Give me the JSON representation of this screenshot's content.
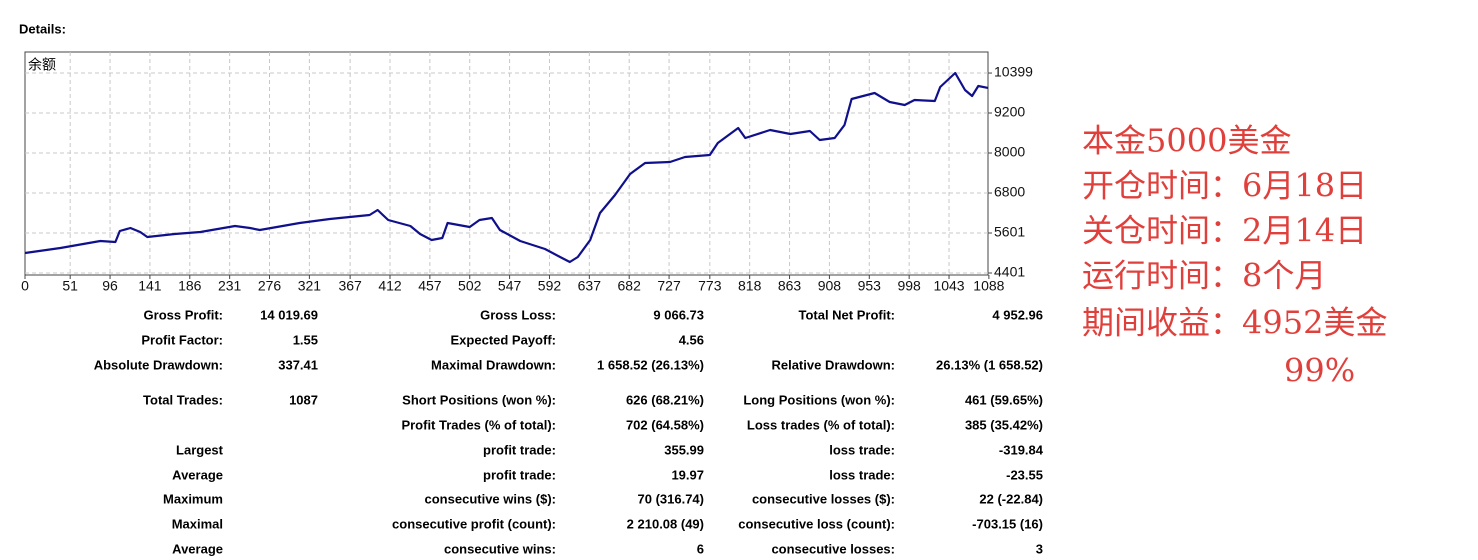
{
  "header": {
    "title": "Details:"
  },
  "chart_data": {
    "type": "line",
    "x": [
      0,
      40,
      85,
      102,
      107,
      119,
      130,
      138,
      169,
      198,
      237,
      254,
      265,
      310,
      344,
      389,
      398,
      410,
      435,
      446,
      459,
      471,
      477,
      502,
      513,
      527,
      536,
      559,
      587,
      604,
      615,
      624,
      638,
      649,
      666,
      683,
      700,
      728,
      745,
      773,
      782,
      805,
      813,
      841,
      864,
      886,
      897,
      914,
      925,
      933,
      959,
      976,
      993,
      1004,
      1027,
      1033,
      1050,
      1061,
      1069,
      1076,
      1087
    ],
    "series": [
      {
        "name": "余额",
        "color": "#10108c",
        "values": [
          5000,
          5151,
          5361,
          5331,
          5661,
          5751,
          5631,
          5481,
          5571,
          5631,
          5811,
          5751,
          5691,
          5901,
          6021,
          6141,
          6291,
          5991,
          5811,
          5571,
          5391,
          5451,
          5901,
          5781,
          5991,
          6051,
          5691,
          5361,
          5121,
          4881,
          4731,
          4881,
          5391,
          6201,
          6741,
          7371,
          7701,
          7731,
          7881,
          7941,
          8301,
          8751,
          8451,
          8691,
          8571,
          8661,
          8391,
          8451,
          8841,
          9621,
          9801,
          9531,
          9441,
          9591,
          9561,
          9981,
          10401,
          9891,
          9711,
          10011,
          9953
        ]
      }
    ],
    "xlim": [
      0,
      1087
    ],
    "xticks": [
      0,
      51,
      96,
      141,
      186,
      231,
      276,
      321,
      367,
      412,
      457,
      502,
      547,
      592,
      637,
      682,
      727,
      773,
      818,
      863,
      908,
      953,
      998,
      1043,
      1088
    ],
    "ylim": [
      4401,
      11000
    ],
    "yticks": [
      4401,
      5601,
      6800,
      8000,
      9200,
      10399
    ],
    "grid": true
  },
  "table": {
    "rows": [
      [
        "Gross Profit:",
        "14 019.69",
        "Gross Loss:",
        "9 066.73",
        "Total Net Profit:",
        "4 952.96"
      ],
      [
        "Profit Factor:",
        "1.55",
        "Expected Payoff:",
        "4.56",
        null,
        null
      ],
      [
        "Absolute Drawdown:",
        "337.41",
        "Maximal Drawdown:",
        "1 658.52 (26.13%)",
        "Relative Drawdown:",
        "26.13% (1 658.52)"
      ],
      [
        "Total Trades:",
        "1087",
        "Short Positions (won %):",
        "626 (68.21%)",
        "Long Positions (won %):",
        "461 (59.65%)"
      ],
      [
        null,
        null,
        "Profit Trades (% of total):",
        "702 (64.58%)",
        "Loss trades (% of total):",
        "385 (35.42%)"
      ],
      [
        "Largest",
        null,
        "profit trade:",
        "355.99",
        "loss trade:",
        "-319.84"
      ],
      [
        "Average",
        null,
        "profit trade:",
        "19.97",
        "loss trade:",
        "-23.55"
      ],
      [
        "Maximum",
        null,
        "consecutive wins ($):",
        "70 (316.74)",
        "consecutive losses ($):",
        "22 (-22.84)"
      ],
      [
        "Maximal",
        null,
        "consecutive profit (count):",
        "2 210.08 (49)",
        "consecutive loss (count):",
        "-703.15 (16)"
      ],
      [
        "Average",
        null,
        "consecutive wins:",
        "6",
        "consecutive losses:",
        "3"
      ]
    ]
  },
  "annotations": [
    "本金5000美金",
    "开仓时间：6月18日",
    "关仓时间：2月14日",
    "运行时间：8个月",
    "期间收益：4952美金",
    "99%"
  ]
}
